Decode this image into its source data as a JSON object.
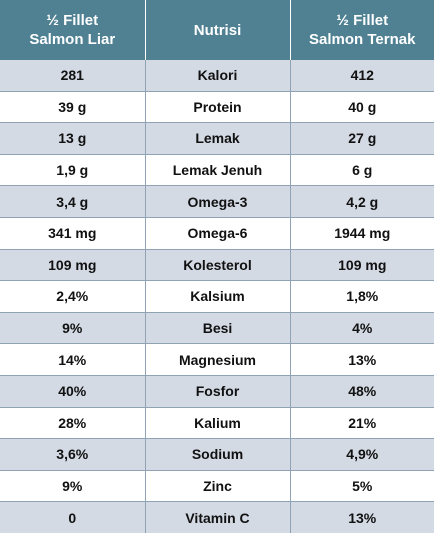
{
  "table": {
    "headers": [
      [
        "½ Fillet",
        "Salmon Liar"
      ],
      [
        "Nutrisi"
      ],
      [
        "½ Fillet",
        "Salmon Ternak"
      ]
    ],
    "rows": [
      [
        "281",
        "Kalori",
        "412"
      ],
      [
        "39 g",
        "Protein",
        "40 g"
      ],
      [
        "13 g",
        "Lemak",
        "27 g"
      ],
      [
        "1,9 g",
        "Lemak Jenuh",
        "6 g"
      ],
      [
        "3,4 g",
        "Omega-3",
        "4,2 g"
      ],
      [
        "341 mg",
        "Omega-6",
        "1944 mg"
      ],
      [
        "109 mg",
        "Kolesterol",
        "109 mg"
      ],
      [
        "2,4%",
        "Kalsium",
        "1,8%"
      ],
      [
        "9%",
        "Besi",
        "4%"
      ],
      [
        "14%",
        "Magnesium",
        "13%"
      ],
      [
        "40%",
        "Fosfor",
        "48%"
      ],
      [
        "28%",
        "Kalium",
        "21%"
      ],
      [
        "3,6%",
        "Sodium",
        "4,9%"
      ],
      [
        "9%",
        "Zinc",
        "5%"
      ],
      [
        "0",
        "Vitamin C",
        "13%"
      ]
    ]
  }
}
